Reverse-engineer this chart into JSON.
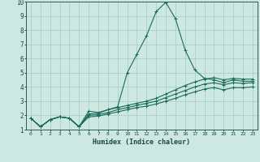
{
  "xlabel": "Humidex (Indice chaleur)",
  "xlim": [
    -0.5,
    23.5
  ],
  "ylim": [
    1,
    10
  ],
  "yticks": [
    1,
    2,
    3,
    4,
    5,
    6,
    7,
    8,
    9,
    10
  ],
  "xticks": [
    0,
    1,
    2,
    3,
    4,
    5,
    6,
    7,
    8,
    9,
    10,
    11,
    12,
    13,
    14,
    15,
    16,
    17,
    18,
    19,
    20,
    21,
    22,
    23
  ],
  "background_color": "#cce8e0",
  "grid_color": "#aacfc8",
  "line_color": "#1a6b5a",
  "line1_x": [
    0,
    1,
    2,
    3,
    4,
    5,
    6,
    7,
    8,
    9,
    10,
    11,
    12,
    13,
    14,
    15,
    16,
    17,
    18,
    19,
    20,
    21,
    22,
    23
  ],
  "line1_y": [
    1.8,
    1.2,
    1.7,
    1.9,
    1.8,
    1.2,
    2.3,
    2.2,
    2.4,
    2.6,
    5.0,
    6.3,
    7.6,
    9.3,
    9.95,
    8.8,
    6.6,
    5.2,
    4.6,
    4.5,
    4.3,
    4.5,
    4.4,
    4.4
  ],
  "line2_x": [
    0,
    1,
    2,
    3,
    4,
    5,
    6,
    7,
    8,
    9,
    10,
    11,
    12,
    13,
    14,
    15,
    16,
    17,
    18,
    19,
    20,
    21,
    22,
    23
  ],
  "line2_y": [
    1.8,
    1.2,
    1.7,
    1.9,
    1.8,
    1.2,
    2.1,
    2.15,
    2.4,
    2.55,
    2.7,
    2.85,
    3.0,
    3.2,
    3.5,
    3.8,
    4.1,
    4.35,
    4.55,
    4.65,
    4.5,
    4.6,
    4.55,
    4.55
  ],
  "line3_x": [
    0,
    1,
    2,
    3,
    4,
    5,
    6,
    7,
    8,
    9,
    10,
    11,
    12,
    13,
    14,
    15,
    16,
    17,
    18,
    19,
    20,
    21,
    22,
    23
  ],
  "line3_y": [
    1.8,
    1.2,
    1.7,
    1.9,
    1.8,
    1.2,
    2.0,
    2.05,
    2.2,
    2.4,
    2.55,
    2.7,
    2.85,
    3.0,
    3.25,
    3.5,
    3.75,
    4.0,
    4.2,
    4.3,
    4.15,
    4.3,
    4.25,
    4.3
  ],
  "line4_x": [
    0,
    1,
    2,
    3,
    4,
    5,
    6,
    7,
    8,
    9,
    10,
    11,
    12,
    13,
    14,
    15,
    16,
    17,
    18,
    19,
    20,
    21,
    22,
    23
  ],
  "line4_y": [
    1.8,
    1.2,
    1.7,
    1.9,
    1.8,
    1.2,
    1.9,
    1.95,
    2.1,
    2.25,
    2.4,
    2.55,
    2.65,
    2.8,
    3.0,
    3.2,
    3.45,
    3.65,
    3.85,
    3.95,
    3.8,
    3.95,
    3.95,
    4.0
  ]
}
